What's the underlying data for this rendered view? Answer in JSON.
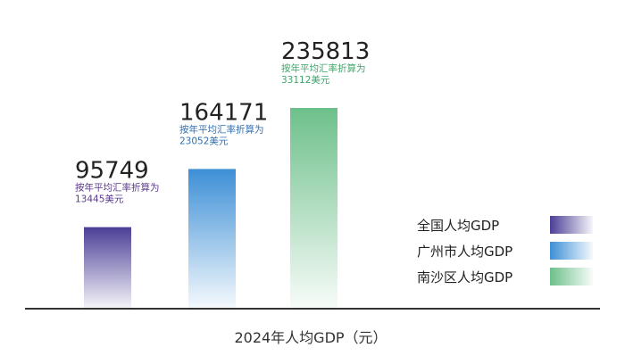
{
  "chart_data": {
    "type": "bar",
    "xlabel": "2024年人均GDP（元）",
    "categories": [
      "全国人均GDP",
      "广州市人均GDP",
      "南沙区人均GDP"
    ],
    "values": [
      95749,
      164171,
      235813
    ],
    "value_labels": [
      "95749",
      "164171",
      "235813"
    ],
    "annotations": [
      [
        "按年平均汇率折算为",
        "13445美元"
      ],
      [
        "按年平均汇率折算为",
        "23052美元"
      ],
      [
        "按年平均汇率折算为",
        "33112美元"
      ]
    ],
    "colors": [
      "#4a3f96",
      "#3d8fd6",
      "#6dc08a"
    ],
    "annotation_colors": [
      "#5a3a8c",
      "#2f6fb3",
      "#3fa56b"
    ],
    "legend": {
      "position": "right",
      "entries": [
        "全国人均GDP",
        "广州市人均GDP",
        "南沙区人均GDP"
      ]
    },
    "grid": false
  }
}
